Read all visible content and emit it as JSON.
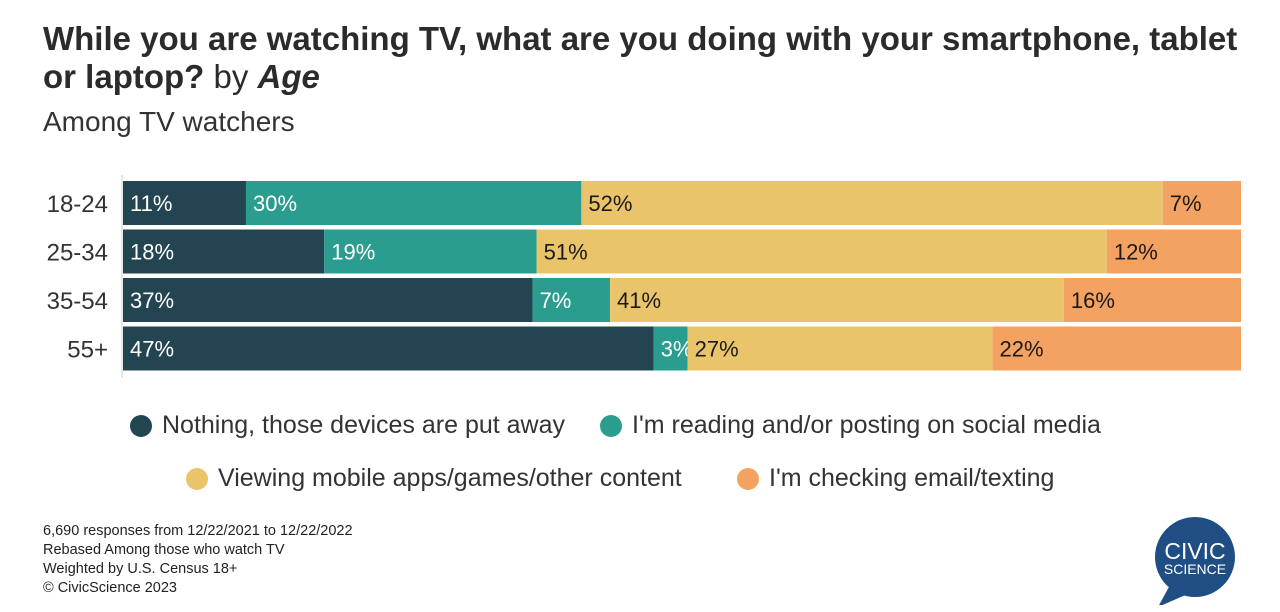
{
  "title": {
    "main": "While you are watching TV, what are you doing with your smartphone, tablet or laptop?",
    "by": "by",
    "dimension": "Age"
  },
  "subtitle": "Among TV watchers",
  "chart_data": {
    "type": "bar",
    "orientation": "horizontal",
    "stacked": true,
    "categories": [
      "18-24",
      "25-34",
      "35-54",
      "55+"
    ],
    "series": [
      {
        "name": "Nothing, those devices are put away",
        "color": "#234552",
        "values": [
          11,
          18,
          37,
          47
        ],
        "labels": [
          "11%",
          "18%",
          "37%",
          "47%"
        ]
      },
      {
        "name": "I'm reading and/or posting on social media",
        "color": "#2a9d8f",
        "values": [
          30,
          19,
          7,
          3
        ],
        "labels": [
          "30%",
          "19%",
          "7%",
          "3%"
        ]
      },
      {
        "name": "Viewing mobile apps/games/other content",
        "color": "#e9c46a",
        "values": [
          52,
          51,
          41,
          27
        ],
        "labels": [
          "52%",
          "51%",
          "41%",
          "27%"
        ]
      },
      {
        "name": "I'm checking email/texting",
        "color": "#f4a261",
        "values": [
          7,
          12,
          16,
          22
        ],
        "labels": [
          "7%",
          "12%",
          "16%",
          "22%"
        ]
      }
    ],
    "label_colors": [
      "#ffffff",
      "#ffffff",
      "#1a1a1a",
      "#1a1a1a"
    ],
    "grid": false,
    "legend": "bottom"
  },
  "notes": [
    "6,690 responses from 12/22/2021 to 12/22/2022",
    "Rebased Among those who watch TV",
    "Weighted by U.S. Census 18+",
    "© CivicScience 2023"
  ],
  "logo": {
    "line1": "CIVIC",
    "line2": "SCIENCE",
    "color": "#1f4e85"
  }
}
